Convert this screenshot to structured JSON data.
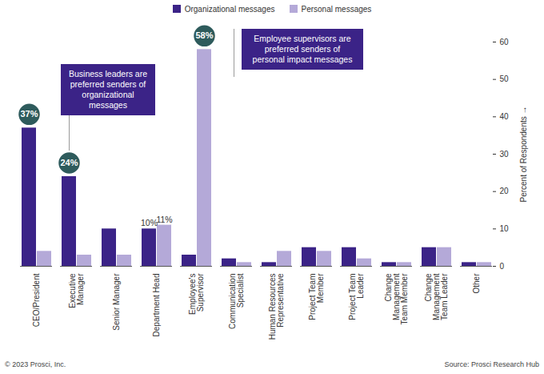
{
  "chart_data": {
    "type": "bar",
    "categories": [
      "CEO/President",
      "Executive Manager",
      "Senior Manager",
      "Department Head",
      "Employee's Supervisor",
      "Communication Specialist",
      "Human Resources Representative",
      "Project Team Member",
      "Project Team Leader",
      "Change Management Team Member",
      "Change Management Team Leader",
      "Other"
    ],
    "series": [
      {
        "name": "Organizational messages",
        "color": "#3b2387",
        "values": [
          37,
          24,
          10,
          10,
          3,
          2,
          1,
          5,
          5,
          1,
          5,
          1
        ],
        "value_labels": [
          "37%",
          "24%",
          null,
          "10%",
          null,
          null,
          null,
          null,
          null,
          null,
          null,
          null
        ]
      },
      {
        "name": "Personal messages",
        "color": "#b4a9d8",
        "values": [
          4,
          3,
          3,
          11,
          58,
          1,
          4,
          4,
          2,
          1,
          5,
          1
        ],
        "value_labels": [
          null,
          null,
          null,
          "11%",
          "58%",
          null,
          null,
          null,
          null,
          null,
          null,
          null
        ]
      }
    ],
    "ylim": [
      0,
      60
    ],
    "yticks": [
      0,
      10,
      20,
      30,
      40,
      50,
      60
    ],
    "y_label": "Percent of Respondents",
    "legend": "top",
    "data_labels": true,
    "annotations": [
      {
        "text": "Business leaders are preferred senders of organizational messages",
        "series": "Organizational messages",
        "categories": [
          "CEO/President",
          "Executive Manager"
        ]
      },
      {
        "text": "Employee supervisors are preferred senders of personal impact messages",
        "series": "Personal messages",
        "categories": [
          "Employee's Supervisor"
        ]
      }
    ],
    "credit": "© 2023 Prosci, Inc.",
    "source": "Source: Prosci Research Hub"
  }
}
